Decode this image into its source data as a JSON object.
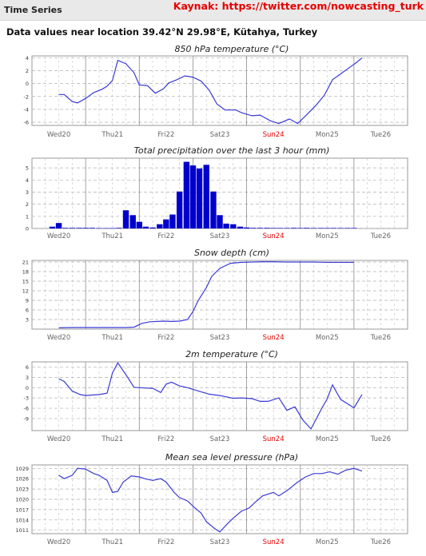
{
  "header": {
    "title": "Time Series",
    "source": "Kaynak: https://twitter.com/nowcasting_turk"
  },
  "location_text": "Data values near location 39.42°N 29.98°E, Kütahya, Turkey",
  "colors": {
    "line": "#3a3ad6",
    "bar": "#0000cc",
    "weekend": "#e60000",
    "grid": "#b0b0b0"
  },
  "days": [
    "Wed20",
    "Thu21",
    "Fri22",
    "Sat23",
    "Sun24",
    "Mon25",
    "Tue26"
  ],
  "weekend_days": [
    "Sun24"
  ],
  "chart_data": [
    {
      "type": "line",
      "title": "850 hPa temperature (°C)",
      "ylim": [
        -6.5,
        4.3
      ],
      "yticks": [
        -6,
        -4,
        -2,
        0,
        2,
        4
      ],
      "x": [
        0.5,
        0.6,
        0.75,
        0.85,
        1.0,
        1.15,
        1.3,
        1.4,
        1.5,
        1.6,
        1.75,
        1.9,
        2.0,
        2.15,
        2.3,
        2.45,
        2.55,
        2.7,
        2.85,
        3.0,
        3.15,
        3.3,
        3.45,
        3.6,
        3.8,
        3.9,
        4.1,
        4.25,
        4.45,
        4.6,
        4.8,
        4.95,
        5.1,
        5.3,
        5.45,
        5.6,
        5.75
      ],
      "values": [
        -1.7,
        -1.7,
        -2.8,
        -3.0,
        -2.3,
        -1.4,
        -0.9,
        -0.4,
        0.5,
        3.6,
        3.1,
        1.7,
        -0.2,
        -0.3,
        -1.5,
        -0.8,
        0.1,
        0.6,
        1.2,
        1.0,
        0.4,
        -1.0,
        -3.2,
        -4.1,
        -4.1,
        -4.5,
        -5.0,
        -4.9,
        -5.8,
        -6.2,
        -5.5,
        -6.2,
        -5.0,
        -3.3,
        -1.8,
        0.6,
        1.5
      ],
      "x_end": [
        5.75,
        5.9,
        6.05,
        6.15
      ],
      "values_end": [
        1.5,
        2.4,
        3.3,
        4.0
      ]
    },
    {
      "type": "bar",
      "title": "Total precipitation over the last 3 hour (mm)",
      "ylim": [
        0,
        5.8
      ],
      "yticks": [
        0,
        1,
        2,
        3,
        4,
        5
      ],
      "x": [
        0.38,
        0.5,
        0.62,
        0.75,
        0.88,
        1.0,
        1.12,
        1.25,
        1.38,
        1.5,
        1.62,
        1.75,
        1.88,
        2.0,
        2.12,
        2.25,
        2.38,
        2.5,
        2.62,
        2.75,
        2.88,
        3.0,
        3.12,
        3.25,
        3.38,
        3.5,
        3.62,
        3.75,
        3.88,
        4.0,
        4.12,
        4.25,
        4.38,
        4.5,
        4.62,
        4.75,
        4.88,
        5.0,
        5.12,
        5.25,
        5.38,
        5.5,
        5.62,
        5.75,
        5.88,
        6.0
      ],
      "values": [
        0.15,
        0.45,
        0.05,
        0.05,
        0.05,
        0.05,
        0.05,
        0.03,
        0.03,
        0.03,
        0.05,
        1.5,
        1.1,
        0.55,
        0.15,
        0.08,
        0.35,
        0.75,
        1.15,
        3.05,
        5.5,
        5.2,
        4.95,
        5.25,
        3.05,
        1.1,
        0.4,
        0.35,
        0.15,
        0.08,
        0.05,
        0.05,
        0.05,
        0.04,
        0.04,
        0.04,
        0.05,
        0.04,
        0.05,
        0.04,
        0.04,
        0.04,
        0.04,
        0.04,
        0.04,
        0.04
      ]
    },
    {
      "type": "line",
      "title": "Snow depth (cm)",
      "ylim": [
        0,
        21.5
      ],
      "yticks": [
        3,
        6,
        9,
        12,
        15,
        18,
        21
      ],
      "x": [
        0.5,
        0.75,
        1.0,
        1.25,
        1.5,
        1.75,
        1.9,
        2.05,
        2.2,
        2.45,
        2.6,
        2.75,
        2.9,
        3.0,
        3.1,
        3.25,
        3.35,
        3.5,
        3.7,
        3.9,
        4.1,
        4.3,
        4.5,
        4.75,
        5.0,
        5.25,
        5.5,
        5.75,
        6.0
      ],
      "values": [
        0.4,
        0.5,
        0.5,
        0.5,
        0.5,
        0.5,
        0.6,
        1.8,
        2.3,
        2.5,
        2.4,
        2.5,
        3.0,
        5.5,
        9.0,
        13.0,
        16.5,
        19.0,
        20.6,
        20.9,
        21.0,
        21.1,
        21.1,
        21.0,
        21.0,
        21.0,
        20.9,
        20.9,
        20.9
      ]
    },
    {
      "type": "line",
      "title": "2m temperature (°C)",
      "ylim": [
        -12.5,
        7.5
      ],
      "yticks": [
        -9,
        -6,
        -3,
        0,
        3,
        6
      ],
      "x": [
        0.5,
        0.6,
        0.75,
        0.9,
        1.0,
        1.25,
        1.4,
        1.5,
        1.6,
        1.75,
        1.9,
        2.1,
        2.25,
        2.4,
        2.5,
        2.6,
        2.75,
        2.9,
        3.0,
        3.15,
        3.3,
        3.5,
        3.75,
        3.9,
        4.1,
        4.25,
        4.4,
        4.6,
        4.75,
        4.9,
        5.05,
        5.2,
        5.4,
        5.5,
        5.6,
        5.75,
        6.0
      ],
      "values": [
        2.6,
        1.8,
        -1.0,
        -2.0,
        -2.3,
        -2.0,
        -1.6,
        4.3,
        7.2,
        3.8,
        0.1,
        -0.1,
        -0.2,
        -1.4,
        1.0,
        1.6,
        0.5,
        0.0,
        -0.5,
        -1.2,
        -1.9,
        -2.3,
        -3.1,
        -3.0,
        -3.2,
        -4.0,
        -4.0,
        -3.0,
        -6.6,
        -5.6,
        -9.5,
        -12.0,
        -6.0,
        -3.3,
        0.8,
        -3.4,
        -5.9
      ],
      "x_end": [
        6.0,
        6.15
      ],
      "values_end": [
        -5.9,
        -2.0
      ]
    },
    {
      "type": "line",
      "title": "Mean sea level pressure (hPa)",
      "ylim": [
        1010,
        1030
      ],
      "yticks": [
        1011,
        1014,
        1017,
        1020,
        1023,
        1026,
        1029
      ],
      "x": [
        0.5,
        0.6,
        0.75,
        0.85,
        1.0,
        1.15,
        1.25,
        1.4,
        1.5,
        1.6,
        1.7,
        1.85,
        2.0,
        2.1,
        2.25,
        2.4,
        2.5,
        2.65,
        2.75,
        2.9,
        3.0,
        3.15,
        3.25,
        3.4,
        3.5,
        3.65,
        3.75,
        3.9,
        4.05,
        4.15,
        4.3,
        4.5,
        4.6,
        4.75,
        4.95,
        5.1,
        5.25,
        5.4,
        5.55,
        5.7,
        5.85,
        6.0,
        6.15
      ],
      "values": [
        1027.0,
        1026.0,
        1027.0,
        1029.0,
        1028.8,
        1027.5,
        1027.0,
        1025.5,
        1022.0,
        1022.3,
        1025.0,
        1026.8,
        1026.5,
        1026.0,
        1025.5,
        1026.0,
        1025.0,
        1022.0,
        1020.5,
        1019.5,
        1018.0,
        1016.0,
        1013.5,
        1011.5,
        1010.5,
        1013.0,
        1014.5,
        1016.5,
        1017.5,
        1019.0,
        1021.0,
        1022.0,
        1021.0,
        1022.5,
        1025.0,
        1026.5,
        1027.5,
        1027.5,
        1028.0,
        1027.3,
        1028.5,
        1029.0,
        1028.2
      ]
    }
  ]
}
